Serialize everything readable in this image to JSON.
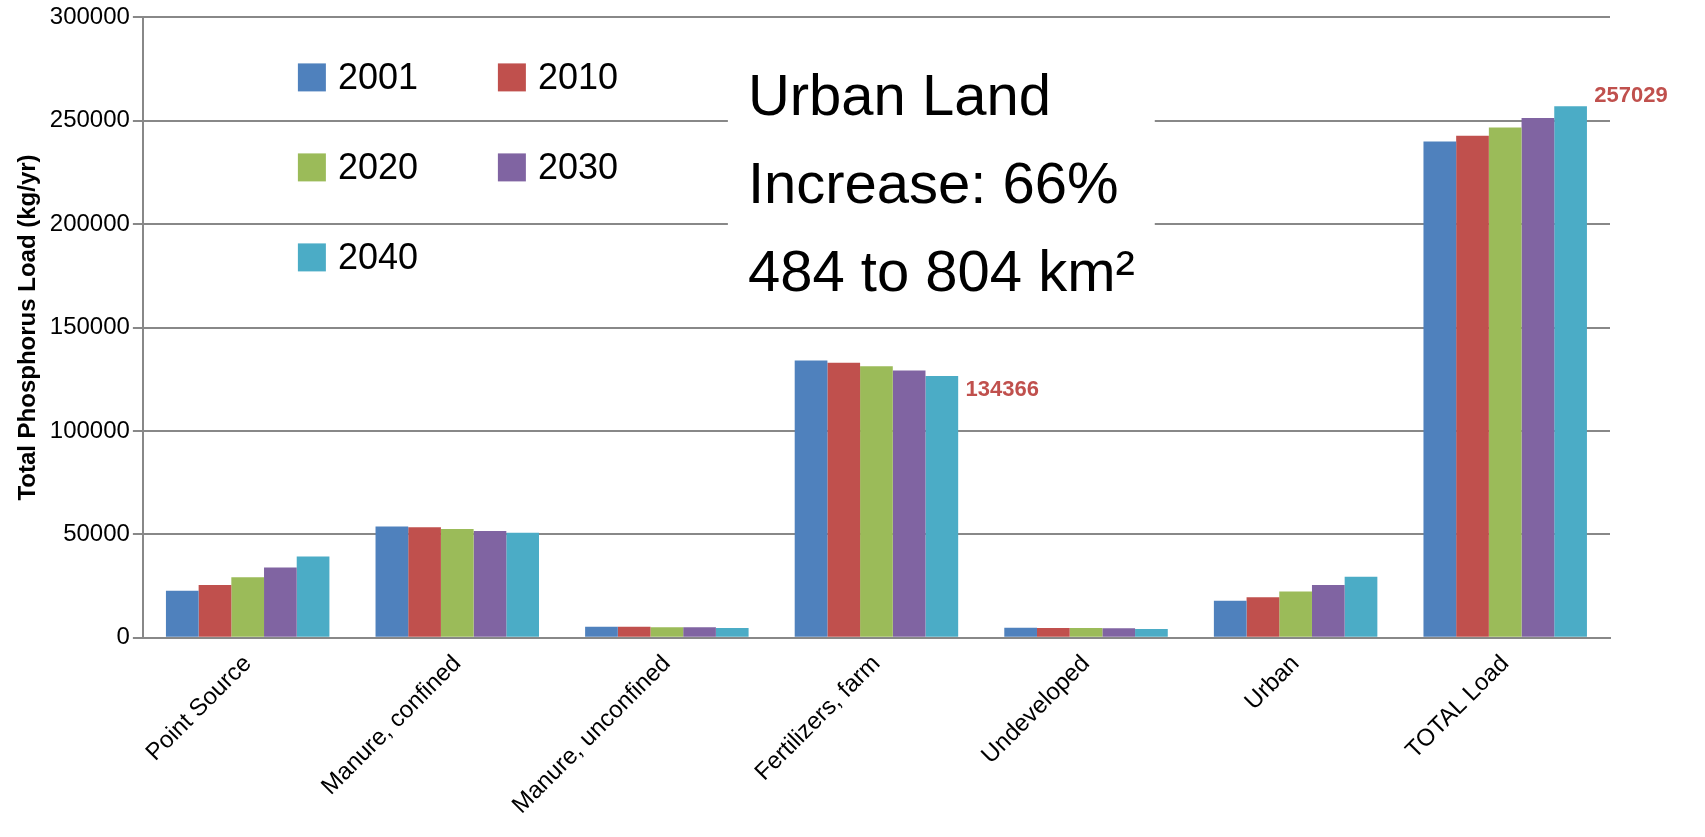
{
  "chart_data": {
    "type": "bar",
    "ylabel": "Total Phosphorus Load (kg/yr)",
    "categories": [
      "Point Source",
      "Manure, confined",
      "Manure, unconfined",
      "Fertilizers, farm",
      "Undeveloped",
      "Urban",
      "TOTAL Load"
    ],
    "series": [
      {
        "name": "2001",
        "color": "#4f81bd",
        "values": [
          22700,
          53700,
          5300,
          134000,
          4800,
          17800,
          240000
        ]
      },
      {
        "name": "2010",
        "color": "#c0504d",
        "values": [
          25400,
          53400,
          5300,
          133000,
          4700,
          19500,
          242800
        ]
      },
      {
        "name": "2020",
        "color": "#9bbb59",
        "values": [
          29200,
          52500,
          5000,
          131300,
          4600,
          22300,
          246800
        ]
      },
      {
        "name": "2030",
        "color": "#8064a2",
        "values": [
          33900,
          51600,
          5000,
          129200,
          4500,
          25500,
          251300
        ]
      },
      {
        "name": "2040",
        "color": "#4bacc6",
        "values": [
          39200,
          50700,
          4700,
          126500,
          4200,
          29500,
          257000
        ]
      }
    ],
    "ylim": [
      0,
      300000
    ],
    "yticks": [
      0,
      50000,
      100000,
      150000,
      200000,
      250000,
      300000
    ],
    "grid": "y",
    "legend": "top left",
    "annotations": [
      "Urban Land\nIncrease: 66%\n484 to 804 km²",
      "134366",
      "257029"
    ]
  }
}
